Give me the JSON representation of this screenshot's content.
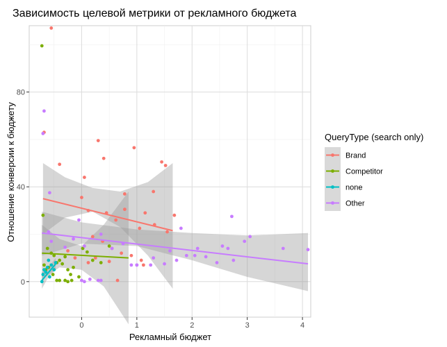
{
  "chart_data": {
    "type": "scatter",
    "title": "Зависимость целевой метрики от рекламного бюджета",
    "xlabel": "Рекламный бюджет",
    "ylabel": "Отношение конверсии к бюджету",
    "xlim": [
      -0.95,
      4.15
    ],
    "ylim": [
      -15,
      108
    ],
    "x_ticks": [
      0,
      1,
      2,
      3,
      4
    ],
    "y_ticks": [
      0,
      40,
      80
    ],
    "grid": true,
    "background": "#ebebeb",
    "legend": {
      "title": "QueryType (search only)",
      "position": "right"
    },
    "series": [
      {
        "name": "Brand",
        "color": "#f8766d",
        "points": [
          [
            -0.55,
            107
          ],
          [
            -0.68,
            63
          ],
          [
            -0.4,
            49.5
          ],
          [
            0.3,
            59.5
          ],
          [
            0.4,
            52
          ],
          [
            0.95,
            56.5
          ],
          [
            1.45,
            50.5
          ],
          [
            1.52,
            49
          ],
          [
            0.05,
            44
          ],
          [
            0.78,
            37
          ],
          [
            1.3,
            38
          ],
          [
            0.0,
            35.5
          ],
          [
            0.12,
            30
          ],
          [
            0.45,
            29
          ],
          [
            0.62,
            26
          ],
          [
            0.78,
            30.5
          ],
          [
            1.05,
            22.5
          ],
          [
            1.15,
            29
          ],
          [
            1.32,
            24
          ],
          [
            1.68,
            28
          ],
          [
            1.55,
            21
          ],
          [
            0.2,
            19
          ],
          [
            0.38,
            17
          ],
          [
            0.55,
            14
          ],
          [
            0.72,
            12
          ],
          [
            0.9,
            11
          ],
          [
            0.25,
            10
          ],
          [
            0.5,
            8.5
          ],
          [
            1.08,
            9
          ],
          [
            1.12,
            7
          ],
          [
            -0.25,
            13
          ],
          [
            -0.12,
            10
          ],
          [
            0.12,
            8
          ],
          [
            0.65,
            0.5
          ]
        ],
        "trend": {
          "x": [
            -0.7,
            1.65
          ],
          "y": [
            35,
            21.5
          ],
          "ci_x": [
            -0.7,
            -0.3,
            0.2,
            0.7,
            1.2,
            1.65
          ],
          "ci_upper": [
            50,
            44,
            39.5,
            38,
            42,
            50
          ],
          "ci_lower": [
            20,
            27,
            29.5,
            23,
            11,
            -3
          ]
        }
      },
      {
        "name": "Competitor",
        "color": "#7cae00",
        "points": [
          [
            -0.72,
            99.5
          ],
          [
            -0.7,
            28
          ],
          [
            -0.62,
            14
          ],
          [
            -0.55,
            12
          ],
          [
            -0.5,
            11
          ],
          [
            -0.45,
            8
          ],
          [
            -0.4,
            9
          ],
          [
            -0.35,
            7.5
          ],
          [
            -0.3,
            10.5
          ],
          [
            -0.25,
            5
          ],
          [
            -0.2,
            3
          ],
          [
            -0.15,
            6
          ],
          [
            -0.05,
            2
          ],
          [
            0.02,
            14
          ],
          [
            0.1,
            12.5
          ],
          [
            0.2,
            9
          ],
          [
            0.35,
            8
          ],
          [
            0.5,
            15
          ],
          [
            -0.45,
            0.5
          ],
          [
            -0.4,
            0.5
          ],
          [
            -0.3,
            0.5
          ],
          [
            -0.25,
            0
          ],
          [
            -0.18,
            0.5
          ],
          [
            -0.6,
            6
          ],
          [
            -0.52,
            3
          ],
          [
            -0.65,
            5
          ],
          [
            -0.68,
            7
          ]
        ],
        "trend": {
          "x": [
            -0.72,
            0.85
          ],
          "y": [
            12,
            10
          ],
          "ci_x": [
            -0.72,
            -0.4,
            0,
            0.4,
            0.85
          ],
          "ci_upper": [
            24,
            18,
            15,
            24,
            38
          ],
          "ci_lower": [
            1,
            6,
            5,
            -2,
            -18
          ]
        }
      },
      {
        "name": "none",
        "color": "#00bfc4",
        "points": [
          [
            -0.72,
            0
          ],
          [
            -0.7,
            3
          ],
          [
            -0.68,
            5
          ],
          [
            -0.65,
            4
          ],
          [
            -0.62,
            6
          ],
          [
            -0.6,
            9
          ],
          [
            -0.58,
            2
          ],
          [
            -0.55,
            7
          ],
          [
            -0.5,
            5
          ],
          [
            -0.47,
            8
          ]
        ],
        "trend": {
          "x": [
            -0.72,
            -0.47
          ],
          "y": [
            0.5,
            7.5
          ],
          "ci_x": [
            -0.72,
            -0.6,
            -0.47
          ],
          "ci_upper": [
            4,
            6,
            10
          ],
          "ci_lower": [
            -3,
            2,
            5
          ]
        }
      },
      {
        "name": "Other",
        "color": "#c77cff",
        "points": [
          [
            -0.68,
            72
          ],
          [
            -0.7,
            62.5
          ],
          [
            -0.58,
            37.5
          ],
          [
            -0.6,
            21
          ],
          [
            -0.55,
            17
          ],
          [
            -0.3,
            14.5
          ],
          [
            -0.15,
            18
          ],
          [
            -0.05,
            26
          ],
          [
            0.05,
            15
          ],
          [
            0.35,
            20
          ],
          [
            0.55,
            14
          ],
          [
            0.75,
            16
          ],
          [
            1.0,
            7
          ],
          [
            1.3,
            10
          ],
          [
            1.5,
            7.5
          ],
          [
            1.8,
            22.5
          ],
          [
            1.9,
            11
          ],
          [
            2.1,
            14
          ],
          [
            2.25,
            10.5
          ],
          [
            2.45,
            8
          ],
          [
            2.55,
            15
          ],
          [
            2.65,
            14
          ],
          [
            2.72,
            27.5
          ],
          [
            2.75,
            9
          ],
          [
            2.95,
            17
          ],
          [
            3.05,
            19
          ],
          [
            3.65,
            14
          ],
          [
            4.1,
            13.5
          ],
          [
            0.0,
            0.5
          ],
          [
            0.05,
            0
          ],
          [
            0.15,
            1
          ],
          [
            0.3,
            0.5
          ],
          [
            0.35,
            0.5
          ],
          [
            0.9,
            7
          ],
          [
            1.0,
            7
          ],
          [
            1.25,
            7
          ],
          [
            1.6,
            13
          ],
          [
            1.72,
            9
          ],
          [
            2.05,
            11
          ]
        ],
        "trend": {
          "x": [
            -0.72,
            4.1
          ],
          "y": [
            20.5,
            7.5
          ],
          "ci_x": [
            -0.72,
            0,
            1,
            2,
            3,
            4.1
          ],
          "ci_upper": [
            29.5,
            25,
            22,
            20.5,
            19.5,
            20.5
          ],
          "ci_lower": [
            11,
            16,
            15,
            9,
            2,
            -4
          ]
        }
      }
    ]
  }
}
